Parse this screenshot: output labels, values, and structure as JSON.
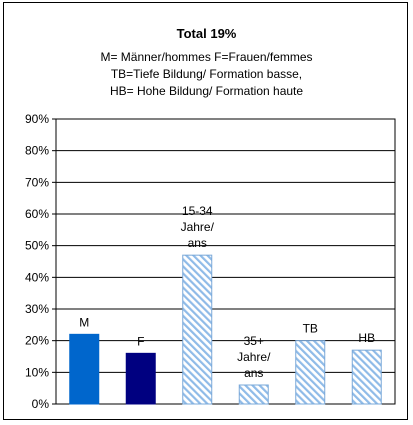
{
  "chart_data": {
    "type": "bar",
    "title": "Total 19%",
    "subtitle_lines": [
      "M= Männer/hommes F=Frauen/femmes",
      "TB=Tiefe Bildung/ Formation basse,",
      "HB= Hohe Bildung/ Formation haute"
    ],
    "ylim": [
      0,
      90
    ],
    "yticks": [
      "0%",
      "10%",
      "20%",
      "30%",
      "40%",
      "50%",
      "60%",
      "70%",
      "80%",
      "90%"
    ],
    "grid": true,
    "bars": [
      {
        "label": [
          "M"
        ],
        "value": 22,
        "color": "#0066cc",
        "pattern": "solid"
      },
      {
        "label": [
          "F"
        ],
        "value": 16,
        "color": "#000080",
        "pattern": "solid"
      },
      {
        "label": [
          "15-34",
          "Jahre/",
          "ans"
        ],
        "value": 47,
        "color": "#a6caf0",
        "pattern": "hatch"
      },
      {
        "label": [
          "35+",
          "Jahre/",
          "ans"
        ],
        "value": 6,
        "color": "#a6caf0",
        "pattern": "hatch"
      },
      {
        "label": [
          "TB"
        ],
        "value": 20,
        "color": "#a6caf0",
        "pattern": "hatch"
      },
      {
        "label": [
          "HB"
        ],
        "value": 17,
        "color": "#a6caf0",
        "pattern": "hatch"
      }
    ]
  }
}
